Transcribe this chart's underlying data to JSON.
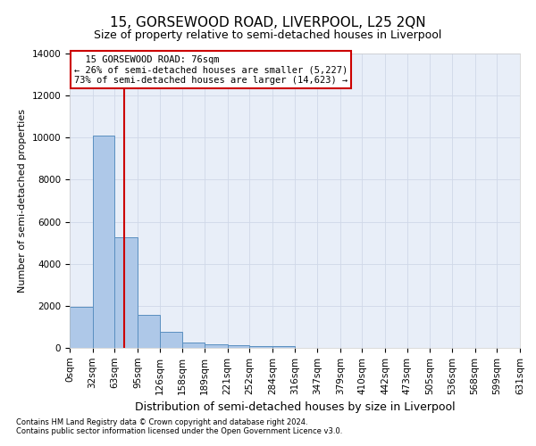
{
  "title": "15, GORSEWOOD ROAD, LIVERPOOL, L25 2QN",
  "subtitle": "Size of property relative to semi-detached houses in Liverpool",
  "xlabel": "Distribution of semi-detached houses by size in Liverpool",
  "ylabel": "Number of semi-detached properties",
  "footer_line1": "Contains HM Land Registry data © Crown copyright and database right 2024.",
  "footer_line2": "Contains public sector information licensed under the Open Government Licence v3.0.",
  "bin_edges": [
    0,
    32,
    63,
    95,
    126,
    158,
    189,
    221,
    252,
    284,
    316,
    347,
    379,
    410,
    442,
    473,
    505,
    536,
    568,
    599,
    631
  ],
  "bar_heights": [
    1950,
    10100,
    5250,
    1550,
    750,
    250,
    175,
    125,
    100,
    80,
    0,
    0,
    0,
    0,
    0,
    0,
    0,
    0,
    0,
    0
  ],
  "bar_color": "#aec8e8",
  "bar_edge_color": "#5a8fc0",
  "property_size": 76,
  "property_label": "15 GORSEWOOD ROAD: 76sqm",
  "pct_smaller": 26,
  "n_smaller": 5227,
  "pct_larger": 73,
  "n_larger": 14623,
  "annotation_box_color": "#ffffff",
  "annotation_box_edge_color": "#cc0000",
  "vline_color": "#cc0000",
  "ylim": [
    0,
    14000
  ],
  "yticks": [
    0,
    2000,
    4000,
    6000,
    8000,
    10000,
    12000,
    14000
  ],
  "grid_color": "#d0d8e8",
  "bg_color": "#e8eef8",
  "title_fontsize": 11,
  "subtitle_fontsize": 9,
  "xlabel_fontsize": 9,
  "ylabel_fontsize": 8,
  "tick_fontsize": 7.5,
  "annotation_fontsize": 7.5
}
